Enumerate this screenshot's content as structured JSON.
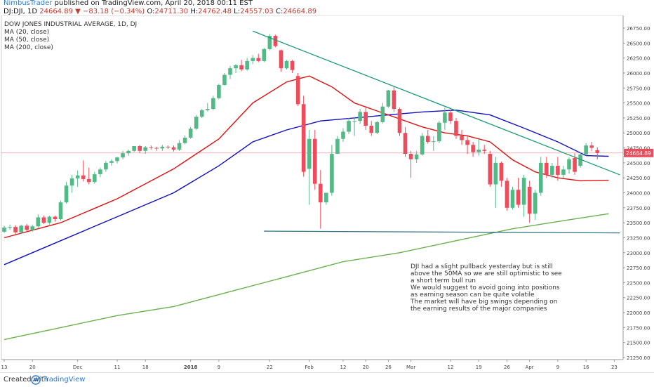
{
  "header": {
    "author": "NimbusTrader",
    "published": "published on TradingView.com, April 20, 2018 00:11 EST",
    "symbol": "DJ:DJI, 1D",
    "last": "24664.89",
    "change": "▼ −83.18 (−0.34%)",
    "open_label": "O:",
    "open": "24711.30",
    "high_label": "H:",
    "high": "24762.48",
    "low_label": "L:",
    "low": "24557.03",
    "close_label": "C:",
    "close": "24664.89"
  },
  "legend": {
    "title": "DOW JONES INDUSTRIAL AVERAGE, 1D, DJ",
    "ma20": "MA (20, close)",
    "ma50": "MA (50, close)",
    "ma200": "MA (200, close)"
  },
  "annotation": [
    "DJI had a slight pullback yesterday but is still",
    "above the 50MA so we are still optimistic to see",
    "a short term bull run",
    "We would suggest to avoid going into positions",
    "as earning season can be quite volatile",
    "The market will have big swings depending on",
    "the earning results of the major companies"
  ],
  "footer": {
    "created": "Created with",
    "brand": "TradingView"
  },
  "colors": {
    "up": "#53b987",
    "down": "#eb4d5c",
    "ma20": "#e01010",
    "ma50": "#1010c0",
    "ma200": "#6ab04c",
    "trendline": "#1a9a78",
    "support": "#2a7080",
    "price_line": "#eb4d5c"
  },
  "chart_data": {
    "type": "candlestick",
    "y_ticks": [
      "26750.00",
      "26500.00",
      "26250.00",
      "26000.00",
      "25750.00",
      "25500.00",
      "25250.00",
      "25000.00",
      "24750.00",
      "24500.00",
      "24250.00",
      "24000.00",
      "23750.00",
      "23500.00",
      "23250.00",
      "23000.00",
      "22750.00",
      "22500.00",
      "22250.00",
      "22000.00",
      "21750.00",
      "21500.00",
      "21250.00"
    ],
    "x_ticks": [
      {
        "label": "13",
        "i": 0
      },
      {
        "label": "20",
        "i": 5
      },
      {
        "label": "Dec",
        "i": 13
      },
      {
        "label": "11",
        "i": 20
      },
      {
        "label": "18",
        "i": 25
      },
      {
        "label": "2018",
        "i": 33
      },
      {
        "label": "9",
        "i": 38
      },
      {
        "label": "22",
        "i": 47
      },
      {
        "label": "Feb",
        "i": 54
      },
      {
        "label": "12",
        "i": 60
      },
      {
        "label": "20",
        "i": 64
      },
      {
        "label": "26",
        "i": 68
      },
      {
        "label": "Mar",
        "i": 72
      },
      {
        "label": "12",
        "i": 79
      },
      {
        "label": "19",
        "i": 84
      },
      {
        "label": "26",
        "i": 89
      },
      {
        "label": "Apr",
        "i": 93
      },
      {
        "label": "9",
        "i": 98
      },
      {
        "label": "16",
        "i": 103
      },
      {
        "label": "23",
        "i": 108
      }
    ],
    "price_label": "24664.89",
    "candles": [
      {
        "o": 23350,
        "h": 23450,
        "l": 23330,
        "c": 23420
      },
      {
        "o": 23420,
        "h": 23470,
        "l": 23380,
        "c": 23430
      },
      {
        "o": 23430,
        "h": 23460,
        "l": 23300,
        "c": 23340
      },
      {
        "o": 23340,
        "h": 23470,
        "l": 23320,
        "c": 23450
      },
      {
        "o": 23450,
        "h": 23480,
        "l": 23360,
        "c": 23380
      },
      {
        "o": 23380,
        "h": 23470,
        "l": 23350,
        "c": 23440
      },
      {
        "o": 23440,
        "h": 23640,
        "l": 23420,
        "c": 23590
      },
      {
        "o": 23590,
        "h": 23620,
        "l": 23480,
        "c": 23500
      },
      {
        "o": 23500,
        "h": 23620,
        "l": 23470,
        "c": 23600
      },
      {
        "o": 23600,
        "h": 23620,
        "l": 23520,
        "c": 23560
      },
      {
        "o": 23560,
        "h": 23870,
        "l": 23540,
        "c": 23840
      },
      {
        "o": 23840,
        "h": 24180,
        "l": 23820,
        "c": 24120
      },
      {
        "o": 24120,
        "h": 24300,
        "l": 24000,
        "c": 24240
      },
      {
        "o": 24240,
        "h": 24370,
        "l": 24100,
        "c": 24290
      },
      {
        "o": 24290,
        "h": 24540,
        "l": 24190,
        "c": 24230
      },
      {
        "o": 24230,
        "h": 24420,
        "l": 24140,
        "c": 24180
      },
      {
        "o": 24180,
        "h": 24350,
        "l": 24150,
        "c": 24310
      },
      {
        "o": 24310,
        "h": 24420,
        "l": 24260,
        "c": 24390
      },
      {
        "o": 24390,
        "h": 24530,
        "l": 24350,
        "c": 24500
      },
      {
        "o": 24500,
        "h": 24560,
        "l": 24450,
        "c": 24530
      },
      {
        "o": 24530,
        "h": 24600,
        "l": 24490,
        "c": 24590
      },
      {
        "o": 24590,
        "h": 24700,
        "l": 24560,
        "c": 24660
      },
      {
        "o": 24660,
        "h": 24720,
        "l": 24620,
        "c": 24700
      },
      {
        "o": 24700,
        "h": 24760,
        "l": 24680,
        "c": 24780
      },
      {
        "o": 24780,
        "h": 24800,
        "l": 24660,
        "c": 24700
      },
      {
        "o": 24700,
        "h": 24780,
        "l": 24650,
        "c": 24760
      },
      {
        "o": 24760,
        "h": 24790,
        "l": 24720,
        "c": 24750
      },
      {
        "o": 24750,
        "h": 24770,
        "l": 24700,
        "c": 24740
      },
      {
        "o": 24740,
        "h": 24800,
        "l": 24700,
        "c": 24770
      },
      {
        "o": 24770,
        "h": 24790,
        "l": 24730,
        "c": 24760
      },
      {
        "o": 24760,
        "h": 24790,
        "l": 24690,
        "c": 24720
      },
      {
        "o": 24720,
        "h": 24880,
        "l": 24700,
        "c": 24830
      },
      {
        "o": 24830,
        "h": 24960,
        "l": 24810,
        "c": 24920
      },
      {
        "o": 24920,
        "h": 25100,
        "l": 24900,
        "c": 25070
      },
      {
        "o": 25070,
        "h": 25300,
        "l": 25050,
        "c": 25270
      },
      {
        "o": 25270,
        "h": 25400,
        "l": 25250,
        "c": 25380
      },
      {
        "o": 25380,
        "h": 25500,
        "l": 25360,
        "c": 25400
      },
      {
        "o": 25400,
        "h": 25620,
        "l": 25380,
        "c": 25580
      },
      {
        "o": 25580,
        "h": 25820,
        "l": 25560,
        "c": 25800
      },
      {
        "o": 25800,
        "h": 26000,
        "l": 25790,
        "c": 25970
      },
      {
        "o": 25970,
        "h": 26120,
        "l": 25900,
        "c": 26080
      },
      {
        "o": 26080,
        "h": 26150,
        "l": 26000,
        "c": 26130
      },
      {
        "o": 26130,
        "h": 26220,
        "l": 26030,
        "c": 26060
      },
      {
        "o": 26060,
        "h": 26250,
        "l": 26040,
        "c": 26200
      },
      {
        "o": 26200,
        "h": 26300,
        "l": 26150,
        "c": 26250
      },
      {
        "o": 26250,
        "h": 26320,
        "l": 26180,
        "c": 26200
      },
      {
        "o": 26200,
        "h": 26420,
        "l": 26180,
        "c": 26400
      },
      {
        "o": 26400,
        "h": 26650,
        "l": 26380,
        "c": 26620
      },
      {
        "o": 26620,
        "h": 26640,
        "l": 26430,
        "c": 26450
      },
      {
        "o": 26380,
        "h": 26390,
        "l": 26020,
        "c": 26080
      },
      {
        "o": 26080,
        "h": 26220,
        "l": 26060,
        "c": 26200
      },
      {
        "o": 26200,
        "h": 26220,
        "l": 26000,
        "c": 26050
      },
      {
        "o": 25950,
        "h": 26000,
        "l": 25450,
        "c": 25480
      },
      {
        "o": 25480,
        "h": 25620,
        "l": 24270,
        "c": 24350
      },
      {
        "o": 24400,
        "h": 25050,
        "l": 23800,
        "c": 24900
      },
      {
        "o": 24900,
        "h": 25050,
        "l": 24050,
        "c": 24150
      },
      {
        "o": 24150,
        "h": 24380,
        "l": 23400,
        "c": 23840
      },
      {
        "o": 23840,
        "h": 24000,
        "l": 23800,
        "c": 24000
      },
      {
        "o": 24000,
        "h": 24800,
        "l": 23950,
        "c": 24650
      },
      {
        "o": 24650,
        "h": 24950,
        "l": 24650,
        "c": 24900
      },
      {
        "o": 24900,
        "h": 25080,
        "l": 24850,
        "c": 25020
      },
      {
        "o": 25020,
        "h": 25250,
        "l": 24980,
        "c": 25200
      },
      {
        "o": 25200,
        "h": 25270,
        "l": 24950,
        "c": 25200
      },
      {
        "o": 25200,
        "h": 25400,
        "l": 25150,
        "c": 25350
      },
      {
        "o": 25350,
        "h": 25450,
        "l": 25050,
        "c": 25120
      },
      {
        "o": 25120,
        "h": 25200,
        "l": 24950,
        "c": 25000
      },
      {
        "o": 25000,
        "h": 25200,
        "l": 24980,
        "c": 25180
      },
      {
        "o": 25180,
        "h": 25500,
        "l": 25160,
        "c": 25440
      },
      {
        "o": 25440,
        "h": 25720,
        "l": 25420,
        "c": 25710
      },
      {
        "o": 25710,
        "h": 25780,
        "l": 25350,
        "c": 25400
      },
      {
        "o": 25400,
        "h": 25420,
        "l": 24950,
        "c": 25000
      },
      {
        "o": 25000,
        "h": 25100,
        "l": 24600,
        "c": 24650
      },
      {
        "o": 24650,
        "h": 24700,
        "l": 24250,
        "c": 24560
      },
      {
        "o": 24560,
        "h": 24700,
        "l": 24500,
        "c": 24640
      },
      {
        "o": 24640,
        "h": 25000,
        "l": 24620,
        "c": 24950
      },
      {
        "o": 24950,
        "h": 25050,
        "l": 24820,
        "c": 24850
      },
      {
        "o": 24850,
        "h": 24950,
        "l": 24700,
        "c": 24860
      },
      {
        "o": 24860,
        "h": 25200,
        "l": 24830,
        "c": 25170
      },
      {
        "o": 25170,
        "h": 25420,
        "l": 25050,
        "c": 25340
      },
      {
        "o": 25340,
        "h": 25380,
        "l": 25150,
        "c": 25200
      },
      {
        "o": 25200,
        "h": 25250,
        "l": 24900,
        "c": 24950
      },
      {
        "o": 24950,
        "h": 25050,
        "l": 24800,
        "c": 24880
      },
      {
        "o": 24880,
        "h": 24950,
        "l": 24650,
        "c": 24800
      },
      {
        "o": 24800,
        "h": 24850,
        "l": 24600,
        "c": 24680
      },
      {
        "o": 24680,
        "h": 24900,
        "l": 24620,
        "c": 24720
      },
      {
        "o": 24720,
        "h": 24800,
        "l": 24650,
        "c": 24700
      },
      {
        "o": 24650,
        "h": 24700,
        "l": 24100,
        "c": 24140
      },
      {
        "o": 24140,
        "h": 24600,
        "l": 23750,
        "c": 24500
      },
      {
        "o": 24500,
        "h": 24520,
        "l": 24100,
        "c": 24200
      },
      {
        "o": 24200,
        "h": 24250,
        "l": 23700,
        "c": 23750
      },
      {
        "o": 23750,
        "h": 24100,
        "l": 23720,
        "c": 24050
      },
      {
        "o": 24050,
        "h": 24250,
        "l": 23750,
        "c": 23800
      },
      {
        "o": 23800,
        "h": 24300,
        "l": 23600,
        "c": 24250
      },
      {
        "o": 24100,
        "h": 24200,
        "l": 23500,
        "c": 23650
      },
      {
        "o": 23650,
        "h": 24050,
        "l": 23550,
        "c": 24000
      },
      {
        "o": 24000,
        "h": 24600,
        "l": 23950,
        "c": 24500
      },
      {
        "o": 24500,
        "h": 24600,
        "l": 24250,
        "c": 24300
      },
      {
        "o": 24300,
        "h": 24500,
        "l": 24250,
        "c": 24450
      },
      {
        "o": 24450,
        "h": 24600,
        "l": 24200,
        "c": 24300
      },
      {
        "o": 24300,
        "h": 24450,
        "l": 24250,
        "c": 24390
      },
      {
        "o": 24390,
        "h": 24590,
        "l": 24320,
        "c": 24560
      },
      {
        "o": 24580,
        "h": 24660,
        "l": 24300,
        "c": 24350
      },
      {
        "o": 24450,
        "h": 24680,
        "l": 24420,
        "c": 24640
      },
      {
        "o": 24640,
        "h": 24830,
        "l": 24620,
        "c": 24790
      },
      {
        "o": 24790,
        "h": 24850,
        "l": 24700,
        "c": 24750
      },
      {
        "o": 24711,
        "h": 24762,
        "l": 24557,
        "c": 24665
      }
    ],
    "ma20": [
      [
        0,
        23250
      ],
      [
        10,
        23500
      ],
      [
        20,
        23900
      ],
      [
        30,
        24400
      ],
      [
        38,
        24900
      ],
      [
        44,
        25500
      ],
      [
        50,
        25850
      ],
      [
        54,
        25950
      ],
      [
        58,
        25770
      ],
      [
        62,
        25500
      ],
      [
        68,
        25300
      ],
      [
        74,
        25100
      ],
      [
        78,
        25000
      ],
      [
        82,
        24950
      ],
      [
        86,
        24850
      ],
      [
        90,
        24550
      ],
      [
        94,
        24350
      ],
      [
        98,
        24250
      ],
      [
        102,
        24200
      ],
      [
        107,
        24210
      ]
    ],
    "ma50": [
      [
        0,
        22800
      ],
      [
        10,
        23200
      ],
      [
        20,
        23600
      ],
      [
        30,
        24000
      ],
      [
        38,
        24450
      ],
      [
        44,
        24850
      ],
      [
        50,
        25050
      ],
      [
        56,
        25200
      ],
      [
        62,
        25250
      ],
      [
        68,
        25300
      ],
      [
        74,
        25350
      ],
      [
        80,
        25380
      ],
      [
        86,
        25300
      ],
      [
        92,
        25080
      ],
      [
        98,
        24850
      ],
      [
        103,
        24620
      ],
      [
        107,
        24610
      ]
    ],
    "ma200": [
      [
        0,
        21550
      ],
      [
        10,
        21750
      ],
      [
        20,
        21950
      ],
      [
        30,
        22100
      ],
      [
        40,
        22350
      ],
      [
        50,
        22600
      ],
      [
        60,
        22850
      ],
      [
        70,
        23000
      ],
      [
        80,
        23200
      ],
      [
        90,
        23400
      ],
      [
        100,
        23550
      ],
      [
        107,
        23650
      ]
    ],
    "trendline": [
      [
        44,
        26700
      ],
      [
        109,
        24300
      ]
    ],
    "support": [
      [
        46,
        23360
      ],
      [
        109,
        23330
      ]
    ]
  }
}
